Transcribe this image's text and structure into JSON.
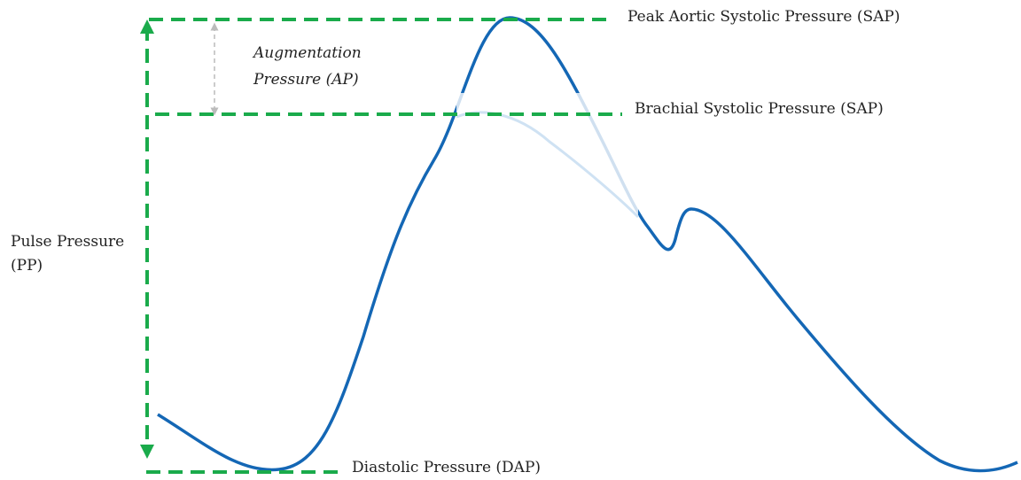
{
  "labels": {
    "peak": "Peak Aortic Systolic Pressure (SAP)",
    "augmentation": [
      "Augmentation",
      "Pressure  (AP)"
    ],
    "brachial": "Brachial  Systolic Pressure (SAP)",
    "pulse": [
      "Pulse Pressure",
      "(PP)"
    ],
    "diastolic": "Diastolic Pressure (DAP)"
  }
}
